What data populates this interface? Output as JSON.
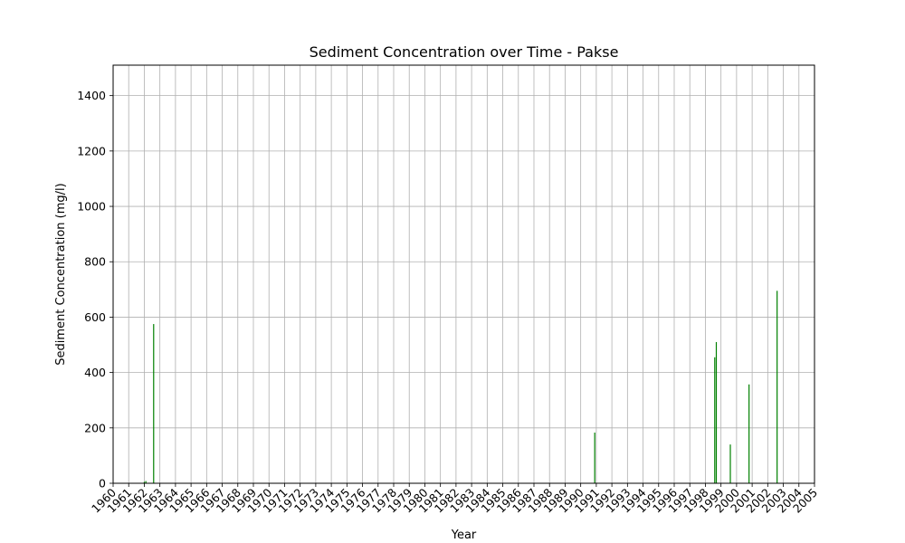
{
  "chart_data": {
    "type": "bar",
    "title": "Sediment Concentration over Time - Pakse",
    "xlabel": "Year",
    "ylabel": "Sediment Concentration (mg/l)",
    "xlim": [
      1960,
      2005
    ],
    "ylim": [
      0,
      1510
    ],
    "x_ticks": [
      "1960",
      "1961",
      "1962",
      "1963",
      "1964",
      "1965",
      "1966",
      "1967",
      "1968",
      "1969",
      "1970",
      "1971",
      "1972",
      "1973",
      "1974",
      "1975",
      "1976",
      "1977",
      "1978",
      "1979",
      "1980",
      "1981",
      "1982",
      "1983",
      "1984",
      "1985",
      "1986",
      "1987",
      "1988",
      "1989",
      "1990",
      "1991",
      "1992",
      "1993",
      "1994",
      "1995",
      "1996",
      "1997",
      "1998",
      "1999",
      "2000",
      "2001",
      "2002",
      "2003",
      "2004",
      "2005"
    ],
    "y_ticks": [
      0,
      200,
      400,
      600,
      800,
      1000,
      1200,
      1400
    ],
    "grid": true,
    "bar_color": "#008000",
    "series": [
      {
        "x": [
          1962.0,
          1962.1,
          1962.6,
          1990.9,
          1998.6,
          1998.7,
          1999.6,
          2000.8,
          2002.6
        ],
        "values": [
          5,
          8,
          575,
          183,
          455,
          510,
          140,
          357,
          695
        ]
      }
    ]
  }
}
